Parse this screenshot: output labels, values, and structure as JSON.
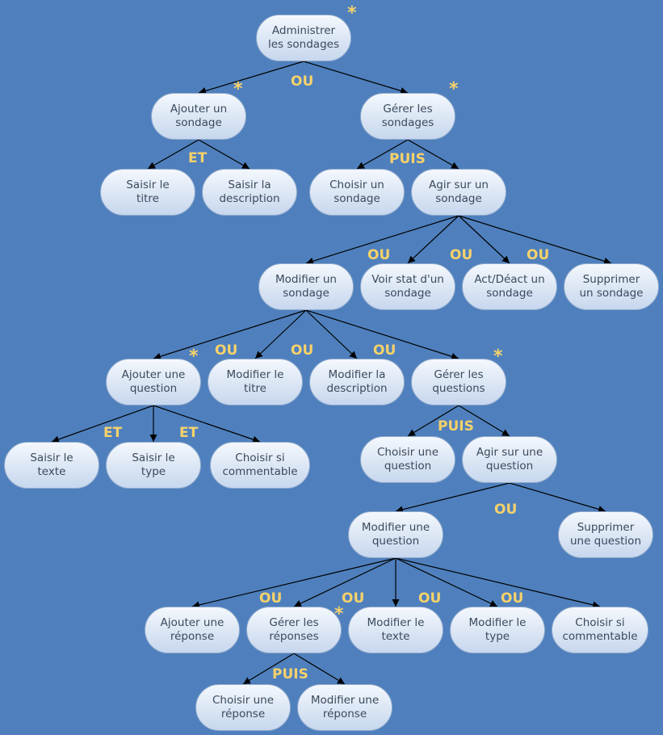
{
  "colors": {
    "background": "#4f80bd",
    "node_fill": "#dfe9f6",
    "operator": "#f7d26a",
    "edge": "#000000"
  },
  "nodes": {
    "root": "Administrer\nles sondages",
    "ajouter_sondage": "Ajouter un\nsondage",
    "gerer_sondages": "Gérer les\nsondages",
    "saisir_titre": "Saisir le\ntitre",
    "saisir_description": "Saisir la\ndescription",
    "choisir_sondage": "Choisir un\nsondage",
    "agir_sondage": "Agir sur un\nsondage",
    "modifier_sondage": "Modifier un\nsondage",
    "voir_stat": "Voir stat d'un\nsondage",
    "act_deact": "Act/Déact un\nsondage",
    "supprimer_sondage": "Supprimer\nun sondage",
    "ajouter_question": "Ajouter une\nquestion",
    "modifier_titre": "Modifier le\ntitre",
    "modifier_description": "Modifier la\ndescription",
    "gerer_questions": "Gérer les\nquestions",
    "saisir_texte": "Saisir le\ntexte",
    "saisir_type": "Saisir le\ntype",
    "choisir_commentable_1": "Choisir si\ncommentable",
    "choisir_question": "Choisir une\nquestion",
    "agir_question": "Agir sur une\nquestion",
    "modifier_question": "Modifier une\nquestion",
    "supprimer_question": "Supprimer\nune question",
    "ajouter_reponse": "Ajouter une\nréponse",
    "gerer_reponses": "Gérer les\nréponses",
    "modifier_texte": "Modifier le\ntexte",
    "modifier_type": "Modifier le\ntype",
    "choisir_commentable_2": "Choisir si\ncommentable",
    "choisir_reponse": "Choisir une\nréponse",
    "modifier_reponse": "Modifier une\nréponse"
  },
  "operators": {
    "root_ou": "OU",
    "ajouter_sondage_et": "ET",
    "gerer_sondages_puis": "PUIS",
    "agir_sondage_ou_1": "OU",
    "agir_sondage_ou_2": "OU",
    "agir_sondage_ou_3": "OU",
    "modifier_sondage_ou_1": "OU",
    "modifier_sondage_ou_2": "OU",
    "modifier_sondage_ou_3": "OU",
    "ajouter_question_et_1": "ET",
    "ajouter_question_et_2": "ET",
    "gerer_questions_puis": "PUIS",
    "agir_question_ou": "OU",
    "modifier_question_ou_1": "OU",
    "modifier_question_ou_2": "OU",
    "modifier_question_ou_3": "OU",
    "modifier_question_ou_4": "OU",
    "gerer_reponses_puis": "PUIS"
  },
  "markers": {
    "star_root": "*",
    "star_ajouter_sondage": "*",
    "star_gerer_sondages": "*",
    "star_ajouter_question": "*",
    "star_gerer_questions": "*",
    "star_gerer_reponses": "*"
  },
  "edges": [
    [
      "root",
      "ajouter_sondage"
    ],
    [
      "root",
      "gerer_sondages"
    ],
    [
      "ajouter_sondage",
      "saisir_titre"
    ],
    [
      "ajouter_sondage",
      "saisir_description"
    ],
    [
      "gerer_sondages",
      "choisir_sondage"
    ],
    [
      "gerer_sondages",
      "agir_sondage"
    ],
    [
      "agir_sondage",
      "modifier_sondage"
    ],
    [
      "agir_sondage",
      "voir_stat"
    ],
    [
      "agir_sondage",
      "act_deact"
    ],
    [
      "agir_sondage",
      "supprimer_sondage"
    ],
    [
      "modifier_sondage",
      "ajouter_question"
    ],
    [
      "modifier_sondage",
      "modifier_titre"
    ],
    [
      "modifier_sondage",
      "modifier_description"
    ],
    [
      "modifier_sondage",
      "gerer_questions"
    ],
    [
      "ajouter_question",
      "saisir_texte"
    ],
    [
      "ajouter_question",
      "saisir_type"
    ],
    [
      "ajouter_question",
      "choisir_commentable_1"
    ],
    [
      "gerer_questions",
      "choisir_question"
    ],
    [
      "gerer_questions",
      "agir_question"
    ],
    [
      "agir_question",
      "modifier_question"
    ],
    [
      "agir_question",
      "supprimer_question"
    ],
    [
      "modifier_question",
      "ajouter_reponse"
    ],
    [
      "modifier_question",
      "gerer_reponses"
    ],
    [
      "modifier_question",
      "modifier_texte"
    ],
    [
      "modifier_question",
      "modifier_type"
    ],
    [
      "modifier_question",
      "choisir_commentable_2"
    ],
    [
      "gerer_reponses",
      "choisir_reponse"
    ],
    [
      "gerer_reponses",
      "modifier_reponse"
    ]
  ]
}
